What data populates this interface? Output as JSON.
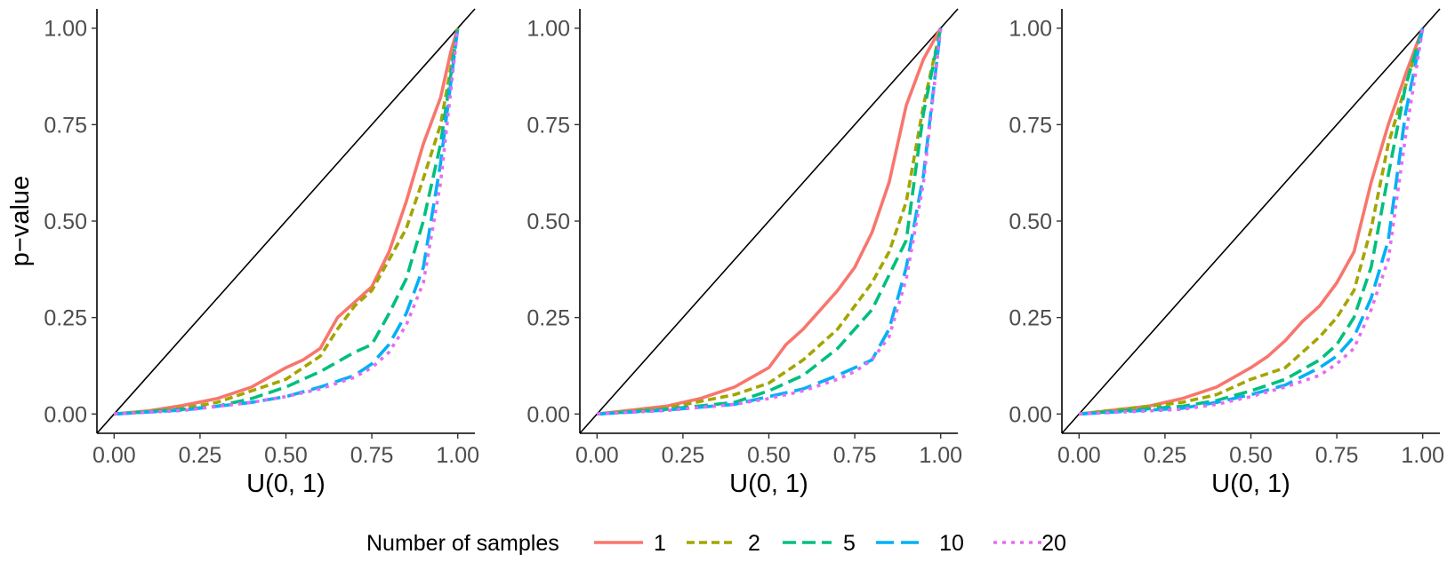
{
  "chart_data": {
    "type": "line",
    "panels": [
      {
        "title": "",
        "xlabel": "U(0, 1)",
        "ylabel": "p−value",
        "xlim": [
          -0.05,
          1.05
        ],
        "ylim": [
          -0.05,
          1.05
        ],
        "xticks": [
          0,
          0.25,
          0.5,
          0.75,
          1.0
        ],
        "xtick_labels": [
          "0.00",
          "0.25",
          "0.50",
          "0.75",
          "1.00"
        ],
        "yticks": [
          0,
          0.25,
          0.5,
          0.75,
          1.0
        ],
        "ytick_labels": [
          "0.00",
          "0.25",
          "0.50",
          "0.75",
          "1.00"
        ],
        "reference_line": "y = x",
        "series": [
          {
            "name": "1",
            "x": [
              0,
              0.1,
              0.2,
              0.3,
              0.4,
              0.5,
              0.55,
              0.6,
              0.65,
              0.7,
              0.75,
              0.8,
              0.85,
              0.9,
              0.95,
              0.98,
              1.0
            ],
            "y": [
              0,
              0.008,
              0.022,
              0.04,
              0.07,
              0.12,
              0.14,
              0.17,
              0.25,
              0.29,
              0.33,
              0.42,
              0.55,
              0.7,
              0.82,
              0.94,
              1.0
            ]
          },
          {
            "name": "2",
            "x": [
              0,
              0.2,
              0.3,
              0.4,
              0.5,
              0.6,
              0.65,
              0.7,
              0.75,
              0.8,
              0.85,
              0.9,
              0.95,
              0.98,
              1.0
            ],
            "y": [
              0,
              0.015,
              0.03,
              0.06,
              0.09,
              0.15,
              0.22,
              0.28,
              0.32,
              0.4,
              0.48,
              0.61,
              0.75,
              0.9,
              1.0
            ]
          },
          {
            "name": "5",
            "x": [
              0,
              0.2,
              0.3,
              0.4,
              0.5,
              0.6,
              0.7,
              0.75,
              0.8,
              0.85,
              0.9,
              0.95,
              1.0
            ],
            "y": [
              0,
              0.012,
              0.02,
              0.04,
              0.07,
              0.11,
              0.16,
              0.18,
              0.26,
              0.35,
              0.5,
              0.7,
              1.0
            ]
          },
          {
            "name": "10",
            "x": [
              0,
              0.2,
              0.4,
              0.5,
              0.6,
              0.7,
              0.75,
              0.8,
              0.85,
              0.9,
              0.95,
              1.0
            ],
            "y": [
              0,
              0.01,
              0.03,
              0.045,
              0.07,
              0.1,
              0.13,
              0.18,
              0.26,
              0.38,
              0.65,
              1.0
            ]
          },
          {
            "name": "20",
            "x": [
              0,
              0.2,
              0.4,
              0.5,
              0.6,
              0.7,
              0.75,
              0.8,
              0.85,
              0.9,
              0.95,
              1.0
            ],
            "y": [
              0,
              0.009,
              0.03,
              0.045,
              0.065,
              0.095,
              0.12,
              0.16,
              0.23,
              0.34,
              0.6,
              1.0
            ]
          }
        ]
      },
      {
        "title": "",
        "xlabel": "U(0, 1)",
        "ylabel": "",
        "xlim": [
          -0.05,
          1.05
        ],
        "ylim": [
          -0.05,
          1.05
        ],
        "xticks": [
          0,
          0.25,
          0.5,
          0.75,
          1.0
        ],
        "xtick_labels": [
          "0.00",
          "0.25",
          "0.50",
          "0.75",
          "1.00"
        ],
        "yticks": [
          0,
          0.25,
          0.5,
          0.75,
          1.0
        ],
        "ytick_labels": [
          "0.00",
          "0.25",
          "0.50",
          "0.75",
          "1.00"
        ],
        "reference_line": "y = x",
        "series": [
          {
            "name": "1",
            "x": [
              0,
              0.2,
              0.3,
              0.4,
              0.5,
              0.55,
              0.6,
              0.65,
              0.7,
              0.75,
              0.8,
              0.85,
              0.88,
              0.9,
              0.95,
              1.0
            ],
            "y": [
              0,
              0.02,
              0.04,
              0.07,
              0.12,
              0.18,
              0.22,
              0.27,
              0.32,
              0.38,
              0.47,
              0.6,
              0.72,
              0.8,
              0.92,
              1.0
            ]
          },
          {
            "name": "2",
            "x": [
              0,
              0.2,
              0.4,
              0.5,
              0.6,
              0.7,
              0.75,
              0.8,
              0.85,
              0.9,
              0.93,
              0.95,
              1.0
            ],
            "y": [
              0,
              0.015,
              0.05,
              0.08,
              0.14,
              0.22,
              0.28,
              0.34,
              0.42,
              0.55,
              0.7,
              0.8,
              1.0
            ]
          },
          {
            "name": "5",
            "x": [
              0,
              0.2,
              0.4,
              0.5,
              0.6,
              0.7,
              0.75,
              0.8,
              0.85,
              0.9,
              0.93,
              0.95,
              1.0
            ],
            "y": [
              0,
              0.012,
              0.03,
              0.06,
              0.1,
              0.17,
              0.22,
              0.27,
              0.36,
              0.45,
              0.65,
              0.78,
              1.0
            ]
          },
          {
            "name": "10",
            "x": [
              0,
              0.2,
              0.4,
              0.5,
              0.6,
              0.7,
              0.75,
              0.8,
              0.85,
              0.9,
              0.95,
              1.0
            ],
            "y": [
              0,
              0.01,
              0.025,
              0.045,
              0.065,
              0.1,
              0.12,
              0.14,
              0.22,
              0.38,
              0.62,
              1.0
            ]
          },
          {
            "name": "20",
            "x": [
              0,
              0.2,
              0.4,
              0.5,
              0.6,
              0.7,
              0.75,
              0.8,
              0.85,
              0.9,
              0.95,
              1.0
            ],
            "y": [
              0,
              0.009,
              0.025,
              0.04,
              0.06,
              0.09,
              0.11,
              0.14,
              0.2,
              0.35,
              0.6,
              1.0
            ]
          }
        ]
      },
      {
        "title": "",
        "xlabel": "U(0, 1)",
        "ylabel": "",
        "xlim": [
          -0.05,
          1.05
        ],
        "ylim": [
          -0.05,
          1.05
        ],
        "xticks": [
          0,
          0.25,
          0.5,
          0.75,
          1.0
        ],
        "xtick_labels": [
          "0.00",
          "0.25",
          "0.50",
          "0.75",
          "1.00"
        ],
        "yticks": [
          0,
          0.25,
          0.5,
          0.75,
          1.0
        ],
        "ytick_labels": [
          "0.00",
          "0.25",
          "0.50",
          "0.75",
          "1.00"
        ],
        "reference_line": "y = x",
        "series": [
          {
            "name": "1",
            "x": [
              0,
              0.2,
              0.3,
              0.4,
              0.5,
              0.55,
              0.6,
              0.65,
              0.7,
              0.75,
              0.8,
              0.85,
              0.9,
              0.95,
              1.0
            ],
            "y": [
              0,
              0.02,
              0.04,
              0.07,
              0.12,
              0.15,
              0.19,
              0.24,
              0.28,
              0.34,
              0.42,
              0.6,
              0.75,
              0.88,
              1.0
            ]
          },
          {
            "name": "2",
            "x": [
              0,
              0.3,
              0.4,
              0.5,
              0.6,
              0.7,
              0.75,
              0.8,
              0.85,
              0.9,
              0.95,
              1.0
            ],
            "y": [
              0,
              0.03,
              0.05,
              0.09,
              0.12,
              0.2,
              0.25,
              0.32,
              0.48,
              0.7,
              0.85,
              1.0
            ]
          },
          {
            "name": "5",
            "x": [
              0,
              0.3,
              0.4,
              0.5,
              0.6,
              0.7,
              0.75,
              0.8,
              0.85,
              0.9,
              0.95,
              1.0
            ],
            "y": [
              0,
              0.02,
              0.035,
              0.06,
              0.09,
              0.14,
              0.18,
              0.25,
              0.38,
              0.62,
              0.85,
              1.0
            ]
          },
          {
            "name": "10",
            "x": [
              0,
              0.3,
              0.4,
              0.5,
              0.6,
              0.7,
              0.75,
              0.8,
              0.85,
              0.9,
              0.95,
              1.0
            ],
            "y": [
              0,
              0.015,
              0.03,
              0.05,
              0.075,
              0.12,
              0.15,
              0.2,
              0.3,
              0.45,
              0.78,
              1.0
            ]
          },
          {
            "name": "20",
            "x": [
              0,
              0.3,
              0.4,
              0.5,
              0.6,
              0.7,
              0.75,
              0.8,
              0.85,
              0.9,
              0.95,
              1.0
            ],
            "y": [
              0,
              0.012,
              0.025,
              0.045,
              0.07,
              0.1,
              0.13,
              0.17,
              0.27,
              0.4,
              0.72,
              1.0
            ]
          }
        ]
      }
    ],
    "legend": {
      "title": "Number of samples",
      "position": "bottom",
      "entries": [
        {
          "label": "1",
          "color": "#F8766D",
          "linetype": "solid"
        },
        {
          "label": "2",
          "color": "#A3A500",
          "linetype": "dotted-dash"
        },
        {
          "label": "5",
          "color": "#00BF7D",
          "linetype": "dashed"
        },
        {
          "label": "10",
          "color": "#00B0F6",
          "linetype": "long-dash"
        },
        {
          "label": "20",
          "color": "#E76BF3",
          "linetype": "dotted"
        }
      ]
    }
  }
}
